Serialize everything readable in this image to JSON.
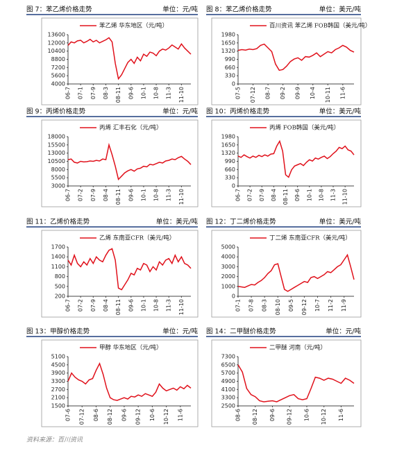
{
  "source": "资料来源：百川资讯",
  "chart_data": [
    {
      "type": "line",
      "title": "图 7：苯乙烯价格走势",
      "unit": "单位：元/吨",
      "categories": [
        "06-7",
        null,
        null,
        null,
        "07-1",
        null,
        null,
        null,
        "07-9",
        null,
        null,
        null,
        "08-3",
        null,
        null,
        null,
        "08-11",
        null,
        null,
        null,
        "09-6",
        null,
        null,
        null,
        "10-1",
        null,
        null,
        null,
        "10-8",
        null,
        null,
        null,
        "11-3",
        null,
        null,
        null,
        "11-10",
        null,
        null,
        null
      ],
      "series": [
        {
          "name": "苯乙烯  华东地区（元/吨）",
          "color": "#e0101a",
          "values": [
            11500,
            12200,
            12000,
            12400,
            12500,
            12000,
            12300,
            12700,
            12200,
            12500,
            12000,
            12300,
            12600,
            13000,
            12200,
            8000,
            5000,
            5800,
            7000,
            8200,
            8800,
            8000,
            9200,
            8500,
            9800,
            9400,
            10200,
            10000,
            9500,
            10400,
            10800,
            10600,
            11000,
            11600,
            11200,
            10800,
            11800,
            11000,
            10400,
            9800
          ]
        }
      ],
      "ylim": [
        4000,
        13600
      ],
      "yticks": [
        4000,
        5600,
        7200,
        8800,
        10400,
        12000,
        13600
      ]
    },
    {
      "type": "line",
      "title": "图 8：苯乙烯价格走势",
      "unit": "单位：美元/吨",
      "categories": [
        "07-5",
        null,
        null,
        null,
        "07-12",
        null,
        null,
        null,
        "08-7",
        null,
        null,
        null,
        "09-2",
        null,
        null,
        null,
        "09-9",
        null,
        null,
        null,
        "10-4",
        null,
        null,
        null,
        "10-11",
        null,
        null,
        null,
        "11-6",
        null,
        null,
        null
      ],
      "series": [
        {
          "name": "百川资讯  苯乙烯 FOB韩国（美元/吨）",
          "color": "#e0101a",
          "values": [
            1350,
            1380,
            1360,
            1400,
            1380,
            1420,
            1550,
            1600,
            1450,
            1300,
            800,
            550,
            580,
            720,
            900,
            1000,
            1050,
            950,
            1100,
            1080,
            1150,
            1250,
            1100,
            1200,
            1300,
            1250,
            1380,
            1450,
            1550,
            1480,
            1350,
            1280
          ]
        }
      ],
      "ylim": [
        0,
        1980
      ],
      "yticks": [
        0,
        330,
        660,
        990,
        1320,
        1650,
        1980
      ]
    },
    {
      "type": "line",
      "title": "图 9：丙烯价格走势",
      "unit": "单位：元/吨",
      "categories": [
        "06-7",
        null,
        null,
        null,
        "07-2",
        null,
        null,
        null,
        "07-9",
        null,
        null,
        null,
        "08-4",
        null,
        null,
        null,
        "08-11",
        null,
        null,
        null,
        "09-6",
        null,
        null,
        null,
        "10-1",
        null,
        null,
        null,
        "10-8",
        null,
        null,
        null,
        "11-3",
        null,
        null,
        null,
        "11-10",
        null,
        null,
        null
      ],
      "series": [
        {
          "name": "丙烯  汇丰石化（元/吨）",
          "color": "#e0101a",
          "values": [
            11000,
            11200,
            10200,
            10000,
            10500,
            10300,
            10400,
            10600,
            10500,
            10800,
            10600,
            11200,
            11000,
            15500,
            12500,
            9000,
            5000,
            6000,
            7000,
            7600,
            8000,
            7500,
            8200,
            8400,
            9000,
            8800,
            9600,
            9400,
            9800,
            10200,
            10000,
            10600,
            10800,
            11200,
            11000,
            11600,
            12000,
            11200,
            10500,
            9500
          ]
        }
      ],
      "ylim": [
        3000,
        18000
      ],
      "yticks": [
        3000,
        5500,
        8000,
        10500,
        13000,
        15500,
        18000
      ]
    },
    {
      "type": "line",
      "title": "图 10：丙烯价格走势",
      "unit": "单位：美元/吨",
      "categories": [
        "06-7",
        null,
        null,
        null,
        "07-2",
        null,
        null,
        null,
        "07-9",
        null,
        null,
        null,
        "08-4",
        null,
        null,
        null,
        "08-11",
        null,
        null,
        null,
        "09-6",
        null,
        null,
        null,
        "10-1",
        null,
        null,
        null,
        "10-8",
        null,
        null,
        null,
        "11-3",
        null,
        null,
        null,
        "11-10",
        null,
        null,
        null
      ],
      "series": [
        {
          "name": "丙烯  FOB韩国（美元/吨）",
          "color": "#e0101a",
          "values": [
            1200,
            1150,
            1250,
            1180,
            1120,
            1200,
            1150,
            1230,
            1180,
            1250,
            1200,
            1280,
            1300,
            1600,
            1800,
            1400,
            450,
            350,
            650,
            800,
            850,
            900,
            820,
            950,
            1050,
            1000,
            1120,
            1080,
            1150,
            1200,
            1100,
            1180,
            1300,
            1400,
            1550,
            1500,
            1600,
            1450,
            1400,
            1250
          ]
        }
      ],
      "ylim": [
        0,
        1980
      ],
      "yticks": [
        0,
        330,
        660,
        990,
        1320,
        1650,
        1980
      ]
    },
    {
      "type": "line",
      "title": "图 11：乙烯价格走势",
      "unit": "单位：美元/吨",
      "categories": [
        "06-7",
        null,
        null,
        null,
        "07-2",
        null,
        null,
        null,
        "07-9",
        null,
        null,
        null,
        "08-4",
        null,
        null,
        null,
        "08-11",
        null,
        null,
        null,
        "09-6",
        null,
        null,
        null,
        "10-1",
        null,
        null,
        null,
        "10-8",
        null,
        null,
        null,
        "11-3",
        null,
        null,
        null,
        "11-10",
        null,
        null,
        null
      ],
      "series": [
        {
          "name": "乙烯  东南亚CFR（美元/吨）",
          "color": "#e0101a",
          "values": [
            1300,
            1150,
            1450,
            1200,
            1100,
            1250,
            1150,
            1350,
            1200,
            1400,
            1300,
            1250,
            1450,
            1600,
            1650,
            1300,
            450,
            400,
            550,
            700,
            900,
            850,
            1050,
            1000,
            1200,
            1150,
            950,
            1100,
            1000,
            1250,
            1150,
            1300,
            1350,
            1200,
            1450,
            1250,
            1400,
            1200,
            1150,
            1050
          ]
        }
      ],
      "ylim": [
        200,
        1700
      ],
      "yticks": [
        200,
        500,
        800,
        1100,
        1400,
        1700
      ]
    },
    {
      "type": "line",
      "title": "图 12：丁二烯价格走势",
      "unit": "单位：美元/吨",
      "categories": [
        "07-1",
        null,
        null,
        null,
        "07-8",
        null,
        null,
        null,
        "08-3",
        null,
        null,
        null,
        "08-10",
        null,
        null,
        null,
        "09-5",
        null,
        null,
        null,
        "09-12",
        null,
        null,
        null,
        "10-7",
        null,
        null,
        null,
        "11-2",
        null,
        null,
        null,
        "11-9",
        null,
        null,
        null
      ],
      "series": [
        {
          "name": "丁二烯  东南亚CFR（美元/吨）",
          "color": "#e0101a",
          "values": [
            1000,
            950,
            900,
            1050,
            1200,
            1150,
            1400,
            1600,
            1900,
            2300,
            2600,
            3200,
            3300,
            2000,
            700,
            500,
            700,
            900,
            1100,
            1300,
            1500,
            1400,
            1900,
            2000,
            1800,
            2000,
            2200,
            2500,
            2400,
            2700,
            3000,
            3200,
            3700,
            4200,
            3000,
            1700
          ]
        }
      ],
      "ylim": [
        0,
        5000
      ],
      "yticks": [
        0,
        1000,
        2000,
        3000,
        4000,
        5000
      ]
    },
    {
      "type": "line",
      "title": "图 13：甲醇价格走势",
      "unit": "单位：元/吨",
      "categories": [
        "07-6",
        null,
        null,
        null,
        "07-12",
        null,
        null,
        null,
        "08-6",
        null,
        null,
        null,
        "08-12",
        null,
        null,
        null,
        "09-6",
        null,
        null,
        null,
        "09-12",
        null,
        null,
        null,
        "10-6",
        null,
        null,
        null,
        "10-12",
        null,
        null,
        null,
        "11-6",
        null,
        null,
        null
      ],
      "series": [
        {
          "name": "甲醇  华东地区（元/吨）",
          "color": "#e0101a",
          "values": [
            3300,
            3900,
            3600,
            3400,
            3300,
            3100,
            3400,
            3500,
            4100,
            4600,
            3800,
            2800,
            2100,
            1950,
            1900,
            2000,
            2100,
            2000,
            2200,
            2150,
            2300,
            2200,
            2400,
            2300,
            2200,
            2500,
            3100,
            2800,
            2600,
            2700,
            2800,
            2650,
            2900,
            2750,
            3000,
            2800
          ]
        }
      ],
      "ylim": [
        1500,
        5100
      ],
      "yticks": [
        1500,
        2100,
        2700,
        3300,
        3900,
        4500,
        5100
      ]
    },
    {
      "type": "line",
      "title": "图 14：二甲醚价格走势",
      "unit": "单位：元/吨",
      "categories": [
        "08-6",
        null,
        null,
        null,
        "08-12",
        null,
        null,
        null,
        "09-6",
        null,
        null,
        null,
        "09-12",
        null,
        null,
        null,
        "10-6",
        null,
        null,
        null,
        "10-12",
        null,
        null,
        null,
        "11-6",
        null,
        null,
        null
      ],
      "series": [
        {
          "name": "二甲醚  河南（元/吨）",
          "color": "#e0101a",
          "values": [
            6500,
            5800,
            4200,
            3600,
            3400,
            3000,
            2900,
            2950,
            3000,
            2900,
            3100,
            3300,
            3500,
            3600,
            3200,
            3100,
            3200,
            4200,
            5300,
            5200,
            5000,
            5200,
            5100,
            4900,
            4700,
            5200,
            5000,
            4700
          ]
        }
      ],
      "ylim": [
        2500,
        7300
      ],
      "yticks": [
        2500,
        3300,
        4100,
        4900,
        5700,
        6500,
        7300
      ]
    }
  ]
}
